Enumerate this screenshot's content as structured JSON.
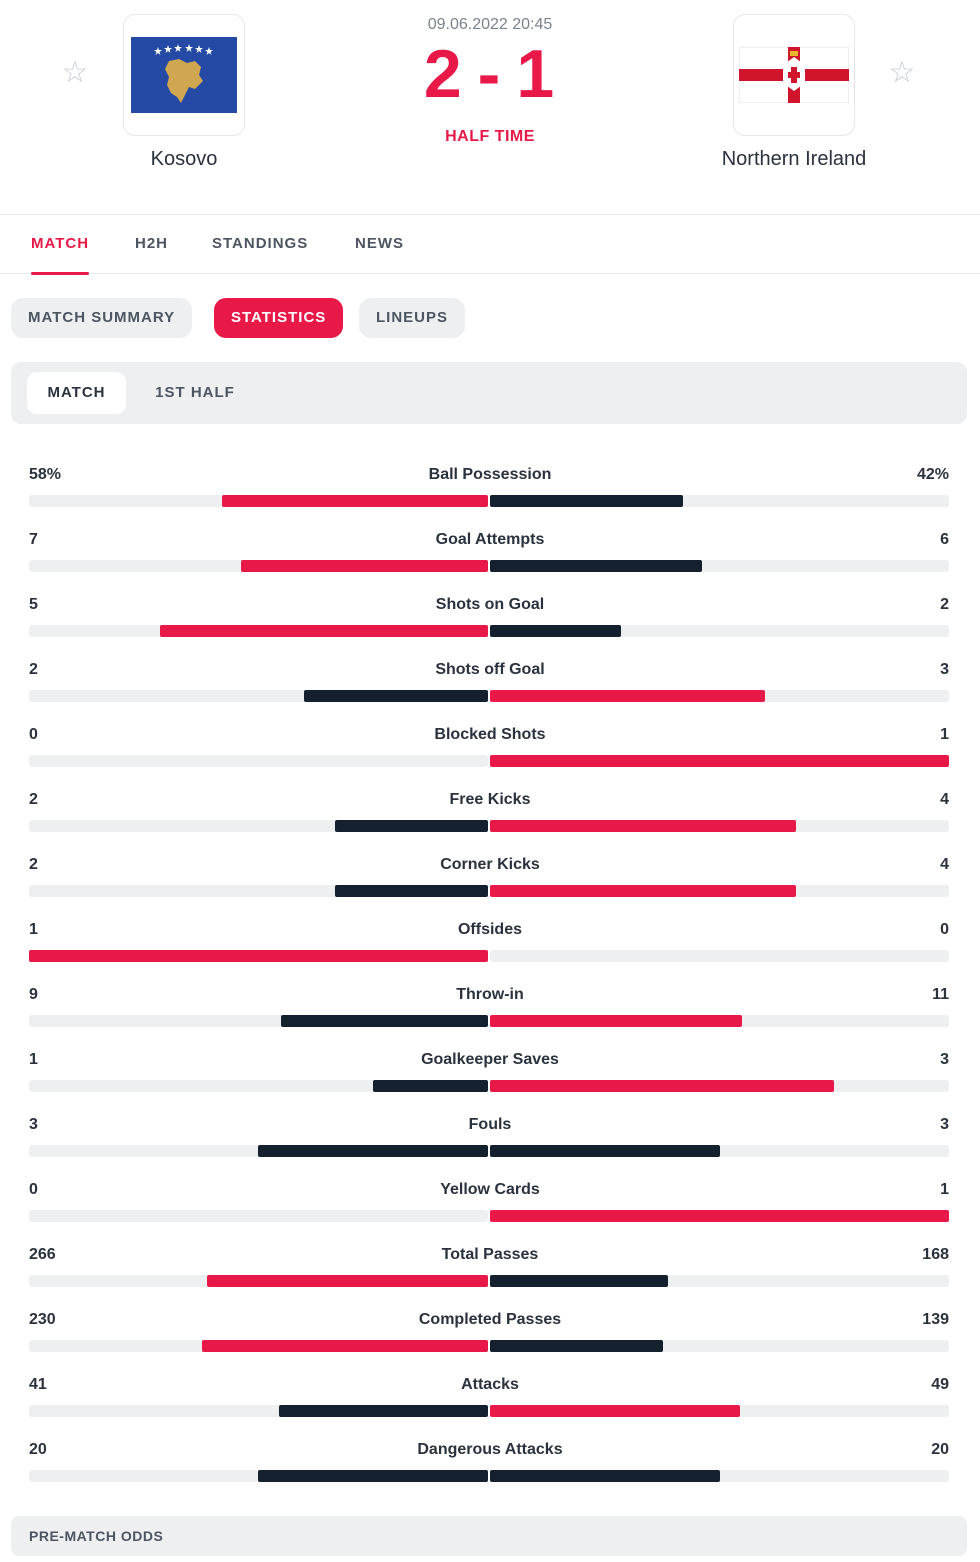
{
  "header": {
    "date": "09.06.2022 20:45",
    "score_home": "2",
    "score_sep": "-",
    "score_away": "1",
    "status": "HALF TIME",
    "home": {
      "name": "Kosovo",
      "flag": "kosovo-flag"
    },
    "away": {
      "name": "Northern Ireland",
      "flag": "northern-ireland-flag"
    },
    "favorite_icon": "star-icon"
  },
  "tabs": [
    "MATCH",
    "H2H",
    "STANDINGS",
    "NEWS"
  ],
  "sub_tabs": [
    "MATCH SUMMARY",
    "STATISTICS",
    "LINEUPS"
  ],
  "periods": [
    "MATCH",
    "1ST HALF"
  ],
  "colors": {
    "accent": "#e81949",
    "dark": "#14202e",
    "track": "#eeeff1"
  },
  "stats": [
    {
      "name": "Ball Possession",
      "home": "58%",
      "away": "42%"
    },
    {
      "name": "Goal Attempts",
      "home": "7",
      "away": "6"
    },
    {
      "name": "Shots on Goal",
      "home": "5",
      "away": "2"
    },
    {
      "name": "Shots off Goal",
      "home": "2",
      "away": "3"
    },
    {
      "name": "Blocked Shots",
      "home": "0",
      "away": "1"
    },
    {
      "name": "Free Kicks",
      "home": "2",
      "away": "4"
    },
    {
      "name": "Corner Kicks",
      "home": "2",
      "away": "4"
    },
    {
      "name": "Offsides",
      "home": "1",
      "away": "0"
    },
    {
      "name": "Throw-in",
      "home": "9",
      "away": "11"
    },
    {
      "name": "Goalkeeper Saves",
      "home": "1",
      "away": "3"
    },
    {
      "name": "Fouls",
      "home": "3",
      "away": "3"
    },
    {
      "name": "Yellow Cards",
      "home": "0",
      "away": "1"
    },
    {
      "name": "Total Passes",
      "home": "266",
      "away": "168"
    },
    {
      "name": "Completed Passes",
      "home": "230",
      "away": "139"
    },
    {
      "name": "Attacks",
      "home": "41",
      "away": "49"
    },
    {
      "name": "Dangerous Attacks",
      "home": "20",
      "away": "20"
    }
  ],
  "footer": {
    "odds_label": "PRE-MATCH ODDS"
  }
}
